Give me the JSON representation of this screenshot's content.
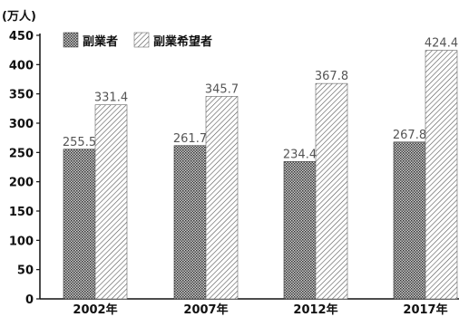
{
  "chart_data": {
    "type": "bar",
    "unit_label": "(万人)",
    "categories": [
      "2002年",
      "2007年",
      "2012年",
      "2017年"
    ],
    "series": [
      {
        "name": "副業者",
        "values": [
          255.5,
          261.7,
          234.4,
          267.8
        ],
        "pattern": "dots",
        "value_labels": [
          "255.5",
          "261.7",
          "234.4",
          "267.8"
        ]
      },
      {
        "name": "副業希望者",
        "values": [
          331.4,
          345.7,
          367.8,
          424.4
        ],
        "pattern": "hatch",
        "value_labels": [
          "331.4",
          "345.7",
          "367.8",
          "424.4"
        ]
      }
    ],
    "yticks": [
      "0",
      "50",
      "100",
      "150",
      "200",
      "250",
      "300",
      "350",
      "400",
      "450"
    ],
    "ylim": [
      0,
      450
    ],
    "legend_position": "top-left",
    "grid": false
  }
}
